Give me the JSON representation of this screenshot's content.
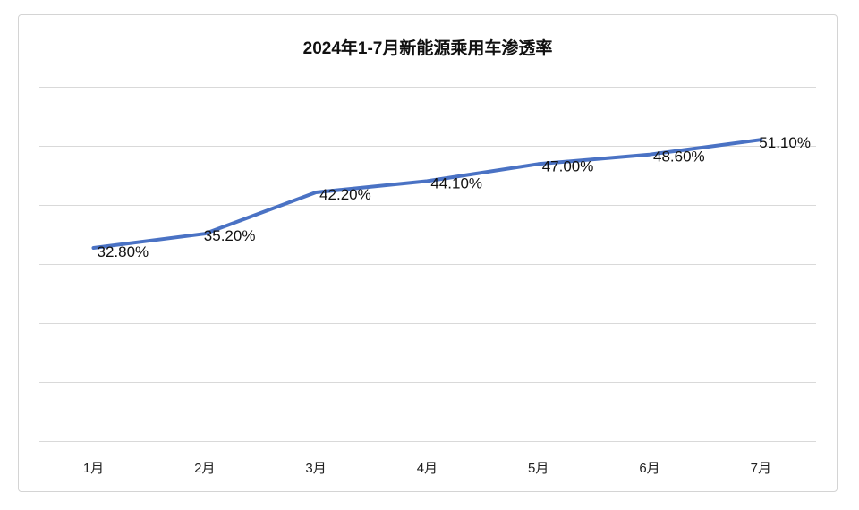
{
  "chart_data": {
    "type": "line",
    "title": "2024年1-7月新能源乘用车渗透率",
    "categories": [
      "1月",
      "2月",
      "3月",
      "4月",
      "5月",
      "6月",
      "7月"
    ],
    "series": [
      {
        "values": [
          32.8,
          35.2,
          42.2,
          44.1,
          47.0,
          48.6,
          51.1
        ],
        "labels": [
          "32.80%",
          "35.20%",
          "42.20%",
          "44.10%",
          "47.00%",
          "48.60%",
          "51.10%"
        ],
        "color": "#4A72C4"
      }
    ],
    "ylim": [
      0,
      60
    ],
    "grid": true,
    "legend": "none"
  }
}
